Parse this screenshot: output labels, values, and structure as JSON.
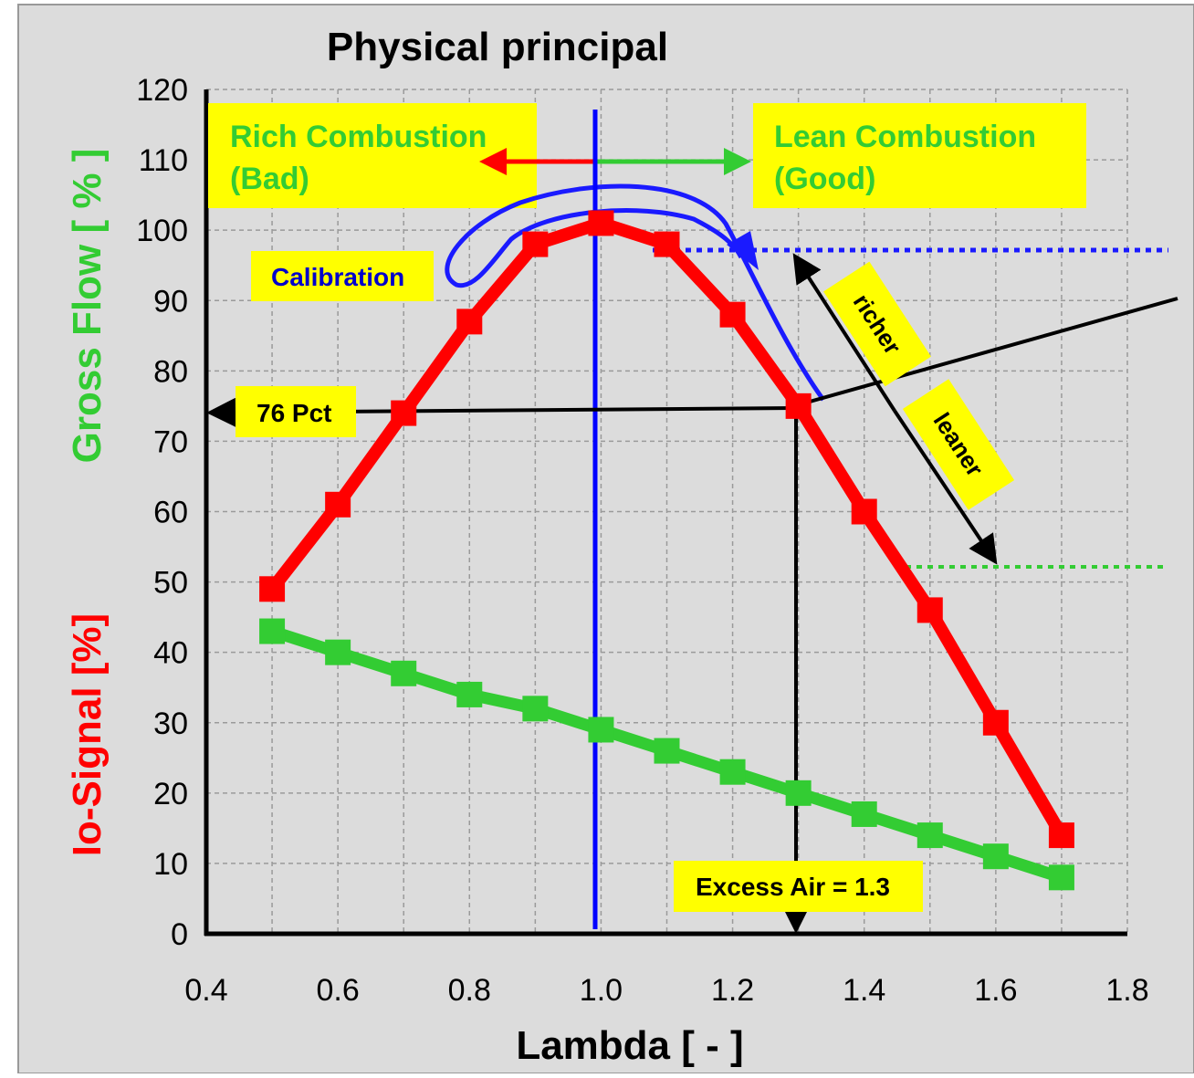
{
  "chart_data": {
    "type": "line",
    "title": "Physical principal",
    "xlabel": "Lambda [ - ]",
    "ylabel_top": "Gross Flow [ % ]",
    "ylabel_bottom": "Io-Signal [%]",
    "xlim": [
      0.4,
      1.8
    ],
    "ylim": [
      0,
      120
    ],
    "x_ticks": [
      "0.4",
      "0.6",
      "0.8",
      "1.0",
      "1.2",
      "1.4",
      "1.6",
      "1.8"
    ],
    "y_ticks": [
      "0",
      "10",
      "20",
      "30",
      "40",
      "50",
      "60",
      "70",
      "80",
      "90",
      "100",
      "110",
      "120"
    ],
    "grid": true,
    "series": [
      {
        "color": "#ff0000",
        "x": [
          0.5,
          0.6,
          0.7,
          0.8,
          0.9,
          1.0,
          1.1,
          1.2,
          1.3,
          1.4,
          1.5,
          1.6,
          1.7
        ],
        "values": [
          49,
          61,
          74,
          87,
          98,
          101,
          98,
          88,
          75,
          60,
          46,
          30,
          14
        ]
      },
      {
        "color": "#33cc33",
        "x": [
          0.5,
          0.6,
          0.7,
          0.8,
          0.9,
          1.0,
          1.1,
          1.2,
          1.3,
          1.4,
          1.5,
          1.6,
          1.7
        ],
        "values": [
          43,
          40,
          37,
          34,
          32,
          29,
          26,
          23,
          20,
          17,
          14,
          11,
          8
        ]
      }
    ],
    "annotations": {
      "rich": [
        "Rich Combustion",
        "(Bad)"
      ],
      "lean": [
        "Lean Combustion",
        "(Good)"
      ],
      "calibration": "Calibration",
      "pct": "76 Pct",
      "excess_air": "Excess Air = 1.3",
      "richer": "richer",
      "leaner": "leaner"
    },
    "colors": {
      "background": "#dcdcdc",
      "label_box": "#ffff00",
      "vertical_line": "#0000ff",
      "green_text": "#33cc33",
      "red_text": "#ff0000",
      "calibration_text": "#0000cc"
    }
  }
}
